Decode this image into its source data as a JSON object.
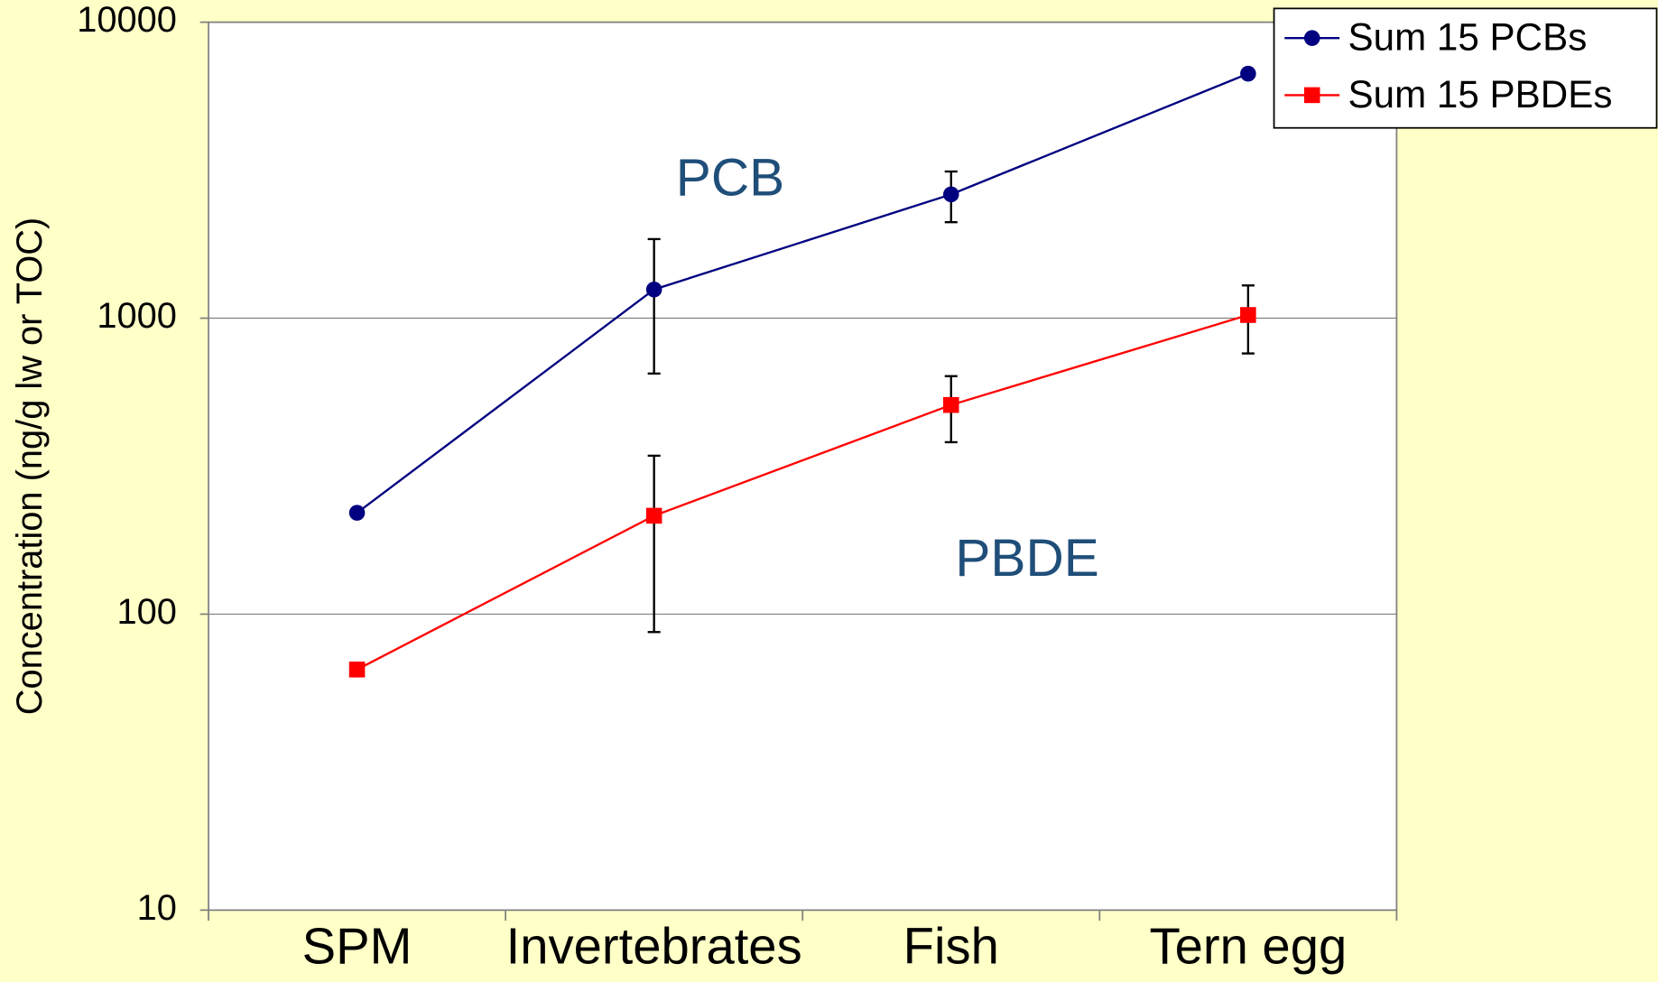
{
  "chart_data": {
    "type": "line",
    "y_label": "Concentration (ng/g lw or TOC)",
    "categories": [
      "SPM",
      "Invertebrates",
      "Fish",
      "Tern egg"
    ],
    "series": [
      {
        "name": "Sum 15 PCBs",
        "color": "#000080",
        "marker": "circle",
        "values": [
          220,
          1250,
          2620,
          6700
        ],
        "errors": [
          null,
          600,
          510,
          null
        ]
      },
      {
        "name": "Sum 15 PBDEs",
        "color": "#ff0000",
        "marker": "square",
        "values": [
          65,
          215,
          509,
          1025
        ],
        "errors": [
          null,
          128,
          128,
          265
        ]
      }
    ],
    "annotations": [
      {
        "text": "PCB",
        "category": "Invertebrates",
        "value": 2900,
        "color": "#1f4e79"
      },
      {
        "text": "PBDE",
        "category": "Fish",
        "value": 150,
        "color": "#1f4e79"
      }
    ],
    "ylim": [
      10,
      10000
    ],
    "yticks": [
      10,
      100,
      1000,
      10000
    ],
    "log_scale": true,
    "grid": true,
    "legend": "top-right"
  }
}
